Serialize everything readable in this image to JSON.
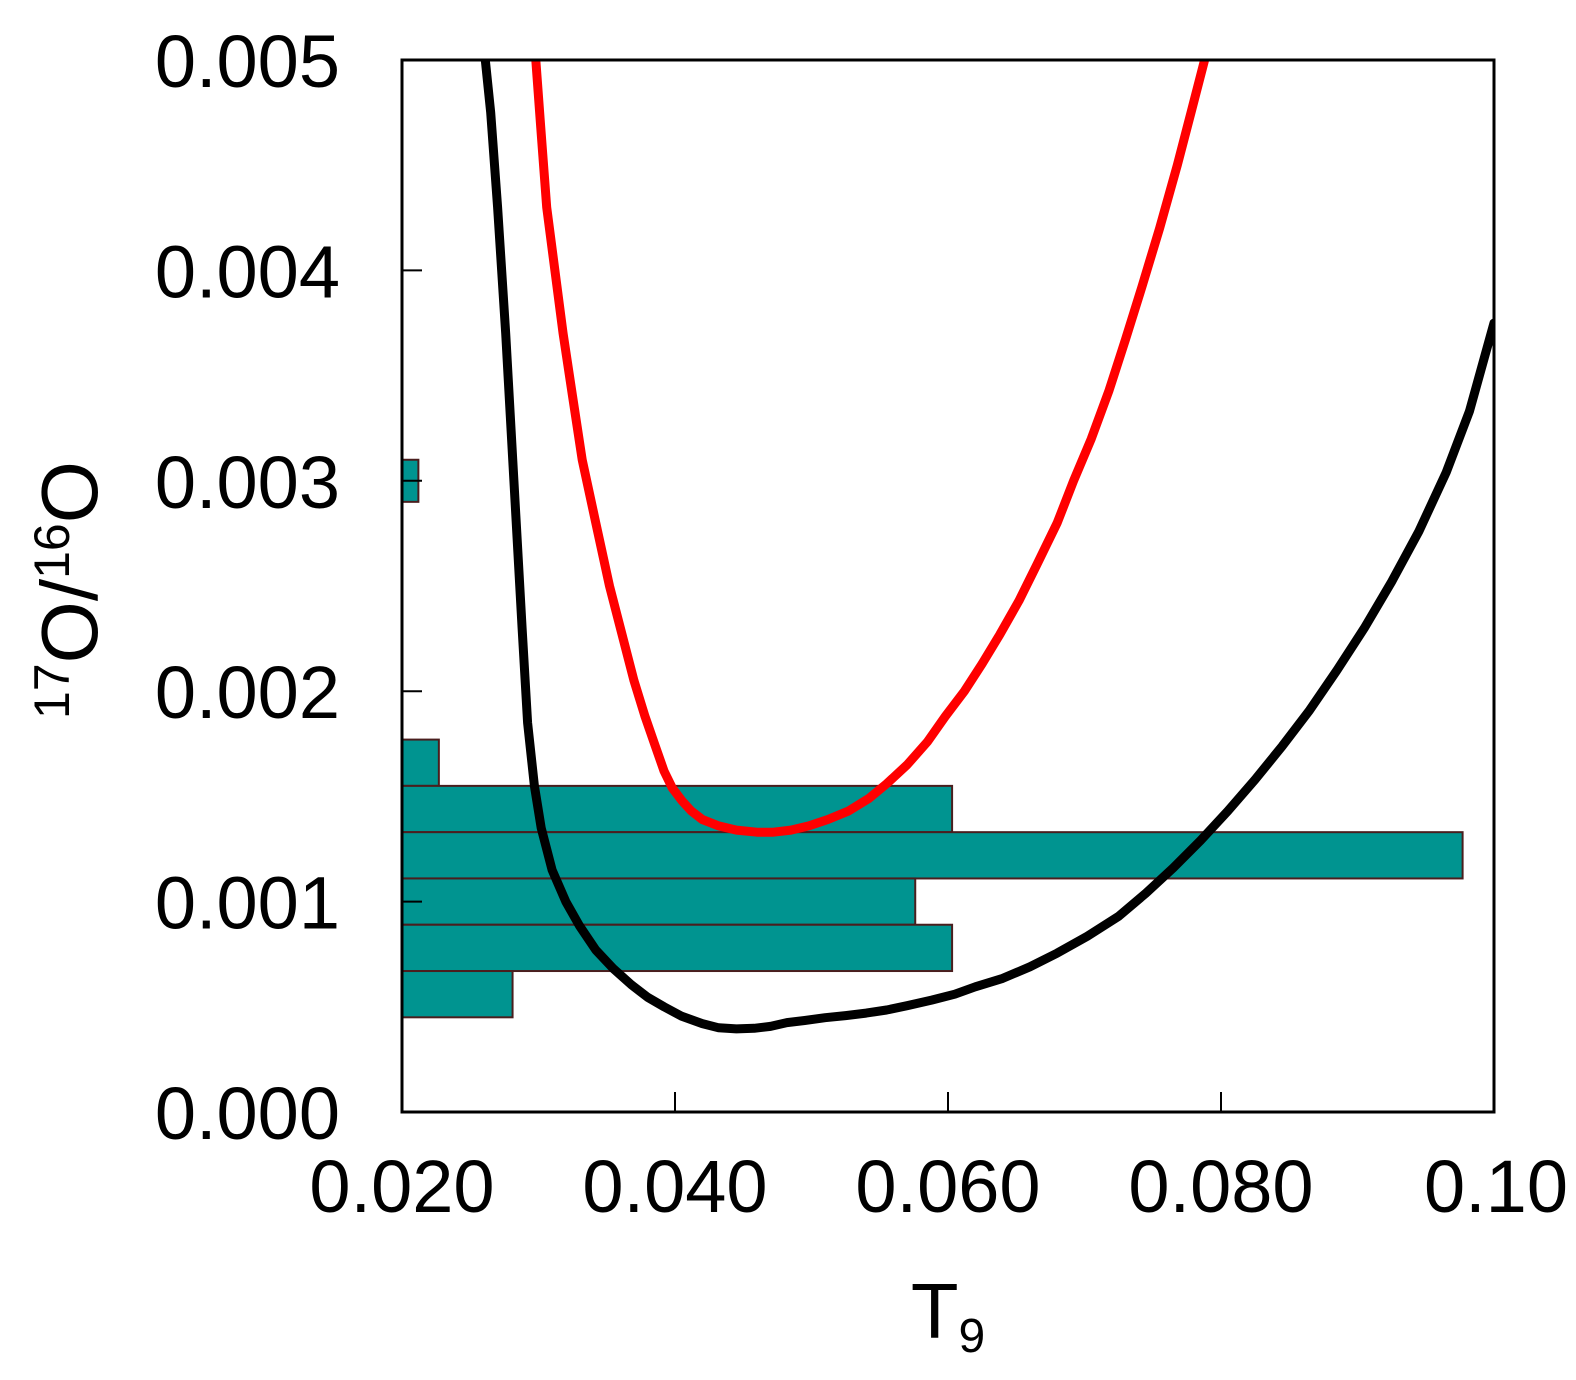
{
  "chart_data": {
    "type": "line",
    "xlim": [
      0.02,
      0.1
    ],
    "ylim": [
      0.0,
      0.005
    ],
    "xlabel": {
      "main": "T",
      "sub": "9"
    },
    "ylabel": {
      "sup1": "17",
      "main1": "O/",
      "sup2": "16",
      "main2": "O"
    },
    "x_ticks": [
      {
        "value": 0.02,
        "label": "0.020"
      },
      {
        "value": 0.04,
        "label": "0.040"
      },
      {
        "value": 0.06,
        "label": "0.060"
      },
      {
        "value": 0.08,
        "label": "0.080"
      },
      {
        "value": 0.1,
        "label": "0.10"
      }
    ],
    "y_ticks": [
      {
        "value": 0.0,
        "label": "0.000"
      },
      {
        "value": 0.001,
        "label": "0.001"
      },
      {
        "value": 0.002,
        "label": "0.002"
      },
      {
        "value": 0.003,
        "label": "0.003"
      },
      {
        "value": 0.004,
        "label": "0.004"
      },
      {
        "value": 0.005,
        "label": "0.005"
      }
    ],
    "grid": false,
    "series": [
      {
        "color": "#000000",
        "x": [
          0.0261,
          0.0265,
          0.027,
          0.0276,
          0.0282,
          0.0288,
          0.0292,
          0.0297,
          0.0302,
          0.031,
          0.032,
          0.033,
          0.0342,
          0.0355,
          0.0368,
          0.038,
          0.0392,
          0.0405,
          0.042,
          0.0432,
          0.0445,
          0.0458,
          0.047,
          0.0482,
          0.0495,
          0.051,
          0.0525,
          0.054,
          0.0555,
          0.057,
          0.0588,
          0.0605,
          0.062,
          0.064,
          0.066,
          0.068,
          0.0702,
          0.0725,
          0.0745,
          0.0765,
          0.0785,
          0.0805,
          0.0825,
          0.0845,
          0.0865,
          0.0885,
          0.0905,
          0.0925,
          0.0945,
          0.0965,
          0.0982,
          0.1
        ],
        "y": [
          0.005,
          0.00475,
          0.0043,
          0.0037,
          0.003,
          0.0023,
          0.00185,
          0.00155,
          0.00135,
          0.00115,
          0.001,
          0.000885,
          0.00077,
          0.00068,
          0.000605,
          0.000545,
          0.0005,
          0.000455,
          0.00042,
          0.0004,
          0.000395,
          0.000398,
          0.000407,
          0.000425,
          0.000435,
          0.000448,
          0.000458,
          0.00047,
          0.000485,
          0.000505,
          0.000532,
          0.00056,
          0.000595,
          0.000635,
          0.00069,
          0.000755,
          0.000835,
          0.00093,
          0.00104,
          0.00116,
          0.00129,
          0.00143,
          0.00158,
          0.00174,
          0.00191,
          0.0021,
          0.0023,
          0.00252,
          0.00276,
          0.00304,
          0.00333,
          0.00375
        ]
      },
      {
        "color": "#ff0000",
        "x": [
          0.0298,
          0.0302,
          0.0306,
          0.0312,
          0.0318,
          0.0325,
          0.0332,
          0.0342,
          0.0352,
          0.0362,
          0.037,
          0.0378,
          0.0385,
          0.0392,
          0.0398,
          0.0405,
          0.0412,
          0.042,
          0.0432,
          0.0445,
          0.046,
          0.0472,
          0.0485,
          0.0498,
          0.0512,
          0.0527,
          0.0542,
          0.0555,
          0.057,
          0.0585,
          0.0598,
          0.0612,
          0.0625,
          0.0638,
          0.0652,
          0.0665,
          0.068,
          0.0692,
          0.0705,
          0.0718,
          0.073,
          0.0742,
          0.0755,
          0.0768,
          0.0778,
          0.0788,
          0.0797,
          0.0807
        ],
        "y": [
          0.005,
          0.00465,
          0.0043,
          0.004,
          0.0037,
          0.0034,
          0.0031,
          0.0028,
          0.0025,
          0.00225,
          0.00205,
          0.00188,
          0.00175,
          0.00162,
          0.00154,
          0.00148,
          0.00143,
          0.00139,
          0.00136,
          0.00134,
          0.00133,
          0.00133,
          0.00134,
          0.00136,
          0.00139,
          0.00143,
          0.00149,
          0.00156,
          0.00165,
          0.00176,
          0.00188,
          0.002,
          0.00213,
          0.00227,
          0.00243,
          0.0026,
          0.0028,
          0.003,
          0.0032,
          0.00343,
          0.00367,
          0.00392,
          0.0042,
          0.0045,
          0.00475,
          0.005,
          0.00525,
          0.0055
        ]
      }
    ],
    "histogram": {
      "fill": "#009490",
      "edge": "#4a1e1e",
      "bins": [
        {
          "y0": 0.0029,
          "y1": 0.0031,
          "x_extent": 0.0212
        },
        {
          "y0": 0.00155,
          "y1": 0.00177,
          "x_extent": 0.0227
        },
        {
          "y0": 0.00133,
          "y1": 0.00155,
          "x_extent": 0.0603
        },
        {
          "y0": 0.00111,
          "y1": 0.00133,
          "x_extent": 0.0977
        },
        {
          "y0": 0.00089,
          "y1": 0.00111,
          "x_extent": 0.0576
        },
        {
          "y0": 0.00067,
          "y1": 0.00089,
          "x_extent": 0.0603
        },
        {
          "y0": 0.00045,
          "y1": 0.00067,
          "x_extent": 0.0281
        }
      ]
    }
  }
}
